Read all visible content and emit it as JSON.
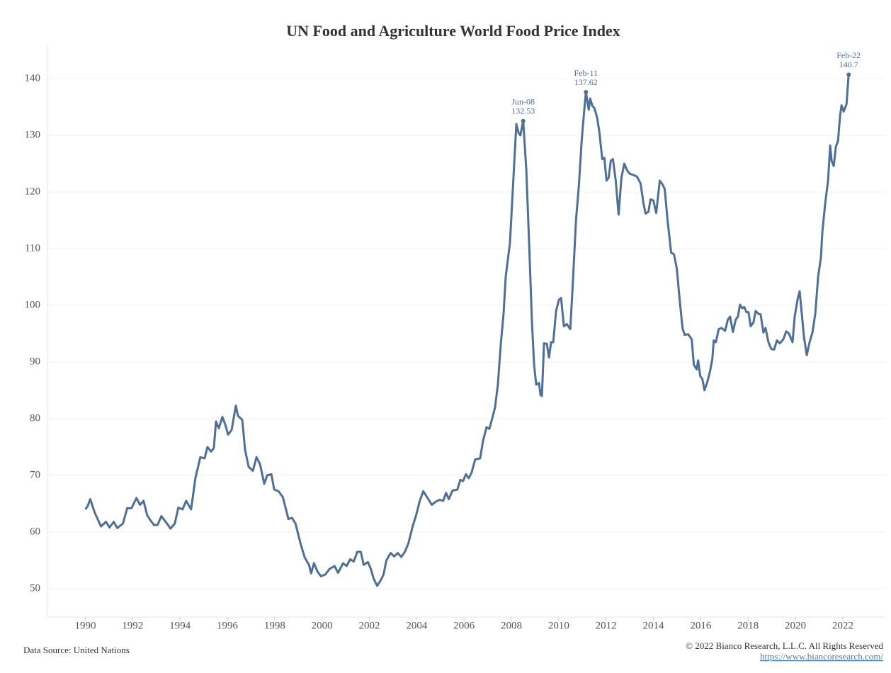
{
  "chart_data": {
    "type": "line",
    "title": "UN Food and Agriculture World Food Price Index",
    "source": "Data Source: United Nations",
    "copyright": "© 2022 Bianco Research, L.L.C. All Rights Reserved",
    "url": "https://www.biancoresearch.com/",
    "color": "#4e6f96",
    "grid": true,
    "xlim": [
      1988.4,
      2023.8
    ],
    "ylim": [
      45,
      146
    ],
    "xticks": [
      1990,
      1992,
      1994,
      1996,
      1998,
      2000,
      2002,
      2004,
      2006,
      2008,
      2010,
      2012,
      2014,
      2016,
      2018,
      2020,
      2022
    ],
    "yticks": [
      50,
      60,
      70,
      80,
      90,
      100,
      110,
      120,
      130,
      140
    ],
    "x": [
      1990.0,
      1990.09,
      1990.21,
      1990.39,
      1990.66,
      1990.87,
      1991.02,
      1991.2,
      1991.35,
      1991.59,
      1991.77,
      1991.95,
      1992.16,
      1992.31,
      1992.46,
      1992.61,
      1992.76,
      1992.91,
      1993.06,
      1993.21,
      1993.45,
      1993.6,
      1993.78,
      1993.93,
      1994.11,
      1994.26,
      1994.47,
      1994.65,
      1994.86,
      1995.04,
      1995.16,
      1995.31,
      1995.43,
      1995.52,
      1995.64,
      1995.79,
      1995.91,
      1996.03,
      1996.18,
      1996.36,
      1996.45,
      1996.63,
      1996.75,
      1996.9,
      1997.08,
      1997.23,
      1997.38,
      1997.56,
      1997.68,
      1997.86,
      1997.98,
      1998.16,
      1998.34,
      1998.46,
      1998.58,
      1998.73,
      1998.88,
      1999.09,
      1999.27,
      1999.45,
      1999.54,
      1999.66,
      1999.81,
      1999.96,
      2000.14,
      2000.32,
      2000.53,
      2000.68,
      2000.89,
      2001.04,
      2001.19,
      2001.34,
      2001.49,
      2001.64,
      2001.76,
      2001.94,
      2002.06,
      2002.18,
      2002.33,
      2002.48,
      2002.6,
      2002.72,
      2002.9,
      2003.05,
      2003.2,
      2003.35,
      2003.5,
      2003.65,
      2003.83,
      2003.98,
      2004.13,
      2004.28,
      2004.46,
      2004.64,
      2004.79,
      2004.97,
      2005.12,
      2005.24,
      2005.36,
      2005.51,
      2005.72,
      2005.84,
      2005.96,
      2006.08,
      2006.2,
      2006.32,
      2006.47,
      2006.68,
      2006.8,
      2006.95,
      2007.07,
      2007.22,
      2007.31,
      2007.43,
      2007.55,
      2007.67,
      2007.76,
      2007.94,
      2008.03,
      2008.12,
      2008.21,
      2008.3,
      2008.38,
      2008.5,
      2008.63,
      2008.75,
      2008.87,
      2008.96,
      2009.05,
      2009.17,
      2009.23,
      2009.29,
      2009.38,
      2009.5,
      2009.59,
      2009.68,
      2009.77,
      2009.89,
      2010.01,
      2010.1,
      2010.22,
      2010.34,
      2010.49,
      2010.61,
      2010.73,
      2010.85,
      2010.97,
      2011.07,
      2011.15,
      2011.27,
      2011.33,
      2011.42,
      2011.51,
      2011.63,
      2011.72,
      2011.84,
      2011.93,
      2012.02,
      2012.11,
      2012.2,
      2012.29,
      2012.41,
      2012.53,
      2012.65,
      2012.77,
      2012.89,
      2013.01,
      2013.16,
      2013.31,
      2013.46,
      2013.58,
      2013.67,
      2013.79,
      2013.88,
      2014.0,
      2014.12,
      2014.27,
      2014.39,
      2014.48,
      2014.6,
      2014.75,
      2014.87,
      2014.99,
      2015.11,
      2015.23,
      2015.32,
      2015.47,
      2015.62,
      2015.71,
      2015.83,
      2015.89,
      2015.98,
      2016.07,
      2016.16,
      2016.28,
      2016.4,
      2016.49,
      2016.55,
      2016.64,
      2016.76,
      2016.88,
      2017.03,
      2017.15,
      2017.24,
      2017.36,
      2017.48,
      2017.57,
      2017.66,
      2017.75,
      2017.84,
      2017.93,
      2018.02,
      2018.11,
      2018.23,
      2018.32,
      2018.44,
      2018.53,
      2018.65,
      2018.74,
      2018.86,
      2018.98,
      2019.1,
      2019.22,
      2019.34,
      2019.49,
      2019.61,
      2019.73,
      2019.88,
      2019.97,
      2020.09,
      2020.18,
      2020.27,
      2020.36,
      2020.48,
      2020.6,
      2020.72,
      2020.84,
      2020.96,
      2021.08,
      2021.14,
      2021.26,
      2021.38,
      2021.47,
      2021.53,
      2021.62,
      2021.71,
      2021.8,
      2021.89,
      2021.95,
      2022.04,
      2022.16,
      2022.25
    ],
    "values": [
      64,
      64.5,
      65.8,
      63.5,
      61,
      61.8,
      60.8,
      61.8,
      60.7,
      61.5,
      64.2,
      64.2,
      66,
      64.8,
      65.5,
      63,
      62,
      61.2,
      61.3,
      62.8,
      61.5,
      60.6,
      61.5,
      64.3,
      64,
      65.5,
      64,
      69.5,
      73.2,
      73,
      75,
      74.2,
      74.8,
      79.5,
      78.3,
      80.3,
      79,
      77.2,
      78,
      82.3,
      80.5,
      79.8,
      74.5,
      71.5,
      70.8,
      73.2,
      72,
      68.5,
      70,
      70.2,
      67.5,
      67.2,
      66.2,
      64.3,
      62.3,
      62.5,
      61.5,
      58,
      55.5,
      54.2,
      52.7,
      54.5,
      53,
      52.2,
      52.5,
      53.5,
      54,
      52.8,
      54.5,
      54,
      55.2,
      54.8,
      56.5,
      56.5,
      54.2,
      54.7,
      53.5,
      51.8,
      50.5,
      51.5,
      52.5,
      55,
      56.3,
      55.7,
      56.3,
      55.6,
      56.5,
      58,
      61,
      63,
      65.5,
      67.2,
      66,
      64.8,
      65.3,
      65.7,
      65.5,
      66.9,
      65.8,
      67.3,
      67.5,
      69.2,
      69,
      70.2,
      69.5,
      70.5,
      72.8,
      73,
      76,
      78.5,
      78.2,
      80.5,
      82,
      86,
      93,
      98.5,
      105,
      111,
      118,
      125,
      132,
      130.5,
      130,
      132.53,
      124,
      111,
      97,
      89.5,
      86,
      86.3,
      84.2,
      84,
      93.3,
      93.2,
      90.8,
      93.5,
      93.5,
      99,
      101,
      101.3,
      96.3,
      96.7,
      95.8,
      105,
      115,
      121,
      129,
      134,
      137.62,
      134.5,
      136.5,
      135.2,
      134.8,
      133,
      130.5,
      125.8,
      126,
      122,
      122.5,
      125.5,
      125.8,
      122,
      116,
      122.5,
      125,
      123.8,
      123.2,
      123,
      122.7,
      121.5,
      118,
      116.2,
      116.5,
      118.7,
      118.5,
      116.3,
      122,
      121.3,
      120.5,
      115,
      109.3,
      109,
      106.5,
      101,
      96,
      94.8,
      94.9,
      94,
      89.5,
      88.7,
      90.3,
      87.5,
      87,
      85,
      86.5,
      88.5,
      90.5,
      93.8,
      93.5,
      95.8,
      96,
      95.5,
      97.5,
      98,
      95.3,
      97.5,
      98,
      100.1,
      99.5,
      99.7,
      98.8,
      98.8,
      96.3,
      97,
      99,
      98.5,
      98.4,
      95.2,
      96,
      93.5,
      92.3,
      92.2,
      93.8,
      93.3,
      94,
      95.4,
      95,
      93.5,
      98,
      101,
      102.5,
      98.5,
      94.5,
      91.2,
      93.5,
      95.2,
      98.5,
      105,
      108.5,
      113,
      118,
      122,
      128.2,
      125.5,
      124.6,
      128,
      129,
      133.5,
      135.3,
      134.2,
      135.5,
      140.7
    ],
    "annotations": [
      {
        "text": "Jun-08",
        "x": 2008.5,
        "y": 132.53
      },
      {
        "text": "Feb-11",
        "x": 2011.15,
        "y": 137.62
      },
      {
        "text": "Feb-22",
        "x": 2022.25,
        "y": 140.7
      }
    ]
  }
}
